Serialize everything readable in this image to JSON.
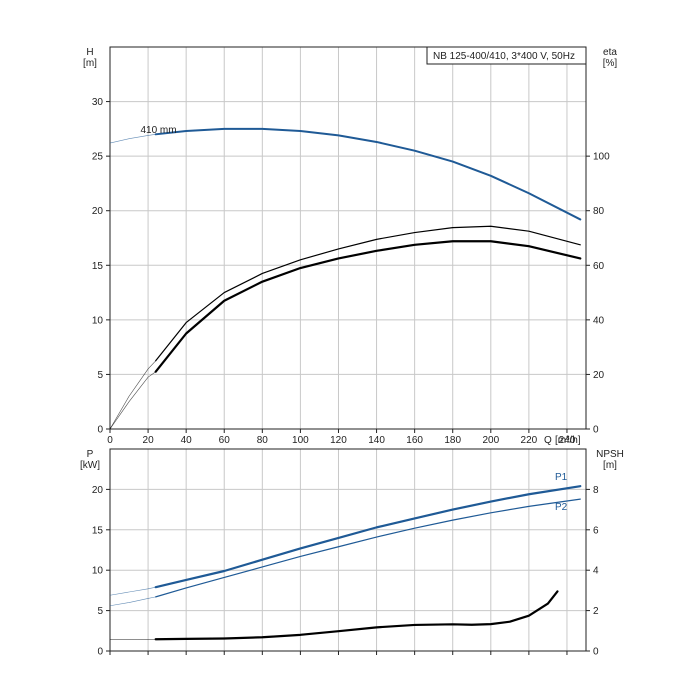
{
  "chart_data": [
    {
      "type": "line",
      "title": "NB 125-400/410, 3*400 V, 50Hz",
      "xlabel": "Q [m³/h]",
      "x_axis_label": "Q",
      "x_unit": "[m³/h]",
      "xlim": [
        0,
        250
      ],
      "x_ticks": [
        0,
        20,
        40,
        60,
        80,
        100,
        120,
        140,
        160,
        180,
        200,
        220,
        240
      ],
      "left_axis": {
        "label": "H",
        "unit": "[m]",
        "lim": [
          0,
          35
        ],
        "ticks": [
          0,
          5,
          10,
          15,
          20,
          25,
          30
        ]
      },
      "right_axis": {
        "label": "eta",
        "unit": "[%]",
        "lim": [
          0,
          140
        ],
        "ticks": [
          0,
          20,
          40,
          60,
          80,
          100
        ]
      },
      "annotations": [
        {
          "text": "410 mm",
          "x": 16,
          "y": 27.1
        }
      ],
      "grid": true,
      "series": [
        {
          "name": "410 mm",
          "axis": "left",
          "color": "#1f5a96",
          "thin_x": [
            0,
            10,
            20,
            24
          ],
          "thin_y": [
            26.2,
            26.6,
            26.9,
            27.0
          ],
          "x": [
            24,
            40,
            60,
            80,
            100,
            120,
            140,
            160,
            180,
            200,
            220,
            247
          ],
          "y": [
            27.0,
            27.3,
            27.5,
            27.5,
            27.3,
            26.9,
            26.3,
            25.5,
            24.5,
            23.2,
            21.6,
            19.2
          ]
        },
        {
          "axis": "right",
          "color": "#000000",
          "thin_x": [
            0,
            10,
            20,
            24
          ],
          "thin_y": [
            0,
            12,
            22,
            25
          ],
          "x": [
            24,
            40,
            60,
            80,
            100,
            120,
            140,
            160,
            180,
            200,
            220,
            247
          ],
          "y": [
            25,
            39,
            50,
            57,
            62,
            66,
            69.5,
            72,
            73.8,
            74.3,
            72.5,
            67.5
          ],
          "width": 1.2
        },
        {
          "axis": "right",
          "color": "#000000",
          "thin_x": [
            0,
            10,
            20,
            24
          ],
          "thin_y": [
            0,
            10,
            19,
            21
          ],
          "x": [
            24,
            40,
            60,
            80,
            100,
            120,
            140,
            160,
            180,
            200,
            220,
            247
          ],
          "y": [
            21,
            35,
            47,
            54,
            59,
            62.5,
            65.3,
            67.5,
            68.8,
            68.8,
            67,
            62.5
          ],
          "width": 2.2
        }
      ]
    },
    {
      "type": "line",
      "x_axis_label": "",
      "xlim": [
        0,
        250
      ],
      "x_ticks": [
        0,
        20,
        40,
        60,
        80,
        100,
        120,
        140,
        160,
        180,
        200,
        220,
        240
      ],
      "left_axis": {
        "label": "P",
        "unit": "[kW]",
        "lim": [
          0,
          25
        ],
        "ticks": [
          0,
          5,
          10,
          15,
          20
        ]
      },
      "right_axis": {
        "label": "NPSH",
        "unit": "[m]",
        "lim": [
          0,
          10
        ],
        "ticks": [
          0,
          2,
          4,
          6,
          8
        ]
      },
      "grid": true,
      "series": [
        {
          "name": "P1",
          "axis": "left",
          "color": "#1f5a96",
          "label_x": 240,
          "thin_x": [
            0,
            10,
            20,
            24
          ],
          "thin_y": [
            6.9,
            7.3,
            7.7,
            7.9
          ],
          "x": [
            24,
            40,
            60,
            80,
            100,
            120,
            140,
            160,
            180,
            200,
            220,
            247
          ],
          "y": [
            7.9,
            8.8,
            9.9,
            11.3,
            12.7,
            14.0,
            15.3,
            16.4,
            17.5,
            18.5,
            19.4,
            20.4
          ],
          "width": 2.2
        },
        {
          "name": "P2",
          "axis": "left",
          "color": "#1f5a96",
          "label_x": 240,
          "thin_x": [
            0,
            10,
            20,
            24
          ],
          "thin_y": [
            5.6,
            6.0,
            6.5,
            6.7
          ],
          "x": [
            24,
            40,
            60,
            80,
            100,
            120,
            140,
            160,
            180,
            200,
            220,
            247
          ],
          "y": [
            6.7,
            7.8,
            9.1,
            10.4,
            11.7,
            12.9,
            14.1,
            15.2,
            16.2,
            17.1,
            17.9,
            18.8
          ],
          "width": 1.2
        },
        {
          "axis": "right",
          "color": "#000000",
          "thin_x": [
            0,
            10,
            20,
            24
          ],
          "thin_y": [
            0.57,
            0.57,
            0.58,
            0.58
          ],
          "x": [
            24,
            40,
            60,
            80,
            100,
            120,
            140,
            160,
            180,
            190,
            200,
            210,
            220,
            230,
            235
          ],
          "y": [
            0.58,
            0.6,
            0.62,
            0.68,
            0.8,
            0.98,
            1.17,
            1.29,
            1.32,
            1.3,
            1.33,
            1.45,
            1.75,
            2.35,
            2.95
          ],
          "width": 2.2
        }
      ]
    }
  ]
}
